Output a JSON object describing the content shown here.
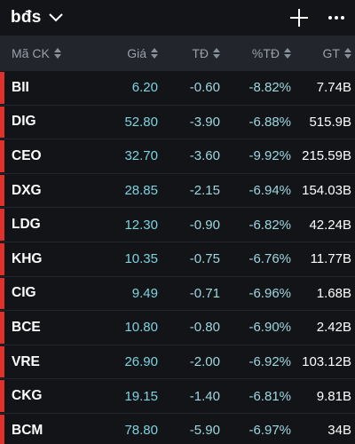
{
  "watchlist": {
    "title": "bđs"
  },
  "columns": {
    "symbol": "Mã CK",
    "price": "Giá",
    "change": "TĐ",
    "pct": "%TĐ",
    "value": "GT"
  },
  "colors": {
    "price": "#7fd3df",
    "down_bar": "#e0302b",
    "header_bg": "#22252b",
    "bg": "#121418"
  },
  "icons": {
    "dropdown": "chevron-down-icon",
    "add": "plus-icon",
    "more": "more-icon",
    "sort": "sort-icon"
  },
  "rows": [
    {
      "symbol": "BII",
      "price": "6.20",
      "change": "-0.60",
      "pct": "-8.82%",
      "value": "7.74B"
    },
    {
      "symbol": "DIG",
      "price": "52.80",
      "change": "-3.90",
      "pct": "-6.88%",
      "value": "515.9B"
    },
    {
      "symbol": "CEO",
      "price": "32.70",
      "change": "-3.60",
      "pct": "-9.92%",
      "value": "215.59B"
    },
    {
      "symbol": "DXG",
      "price": "28.85",
      "change": "-2.15",
      "pct": "-6.94%",
      "value": "154.03B"
    },
    {
      "symbol": "LDG",
      "price": "12.30",
      "change": "-0.90",
      "pct": "-6.82%",
      "value": "42.24B"
    },
    {
      "symbol": "KHG",
      "price": "10.35",
      "change": "-0.75",
      "pct": "-6.76%",
      "value": "11.77B"
    },
    {
      "symbol": "CIG",
      "price": "9.49",
      "change": "-0.71",
      "pct": "-6.96%",
      "value": "1.68B"
    },
    {
      "symbol": "BCE",
      "price": "10.80",
      "change": "-0.80",
      "pct": "-6.90%",
      "value": "2.42B"
    },
    {
      "symbol": "VRE",
      "price": "26.90",
      "change": "-2.00",
      "pct": "-6.92%",
      "value": "103.12B"
    },
    {
      "symbol": "CKG",
      "price": "19.15",
      "change": "-1.40",
      "pct": "-6.81%",
      "value": "9.81B"
    },
    {
      "symbol": "BCM",
      "price": "78.80",
      "change": "-5.90",
      "pct": "-6.97%",
      "value": "34B"
    }
  ]
}
